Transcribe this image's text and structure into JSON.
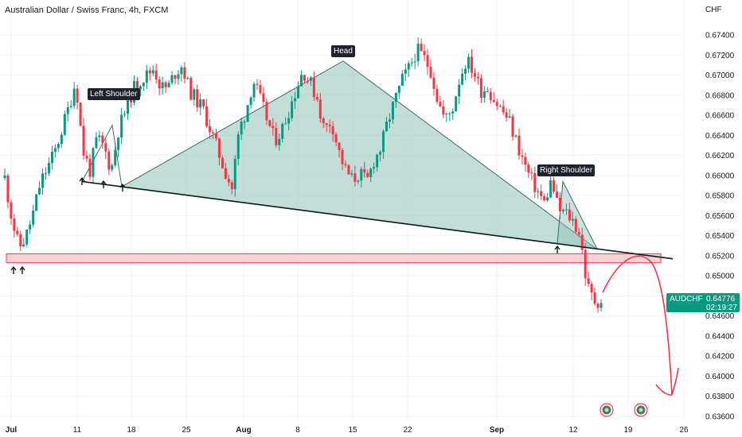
{
  "header": {
    "title": "Australian Dollar / Swiss Franc, 4h, FXCM",
    "currency": "CHF"
  },
  "price_tag": {
    "symbol": "AUDCHF",
    "price": "0.64776",
    "countdown": "02:19:27"
  },
  "annotations": {
    "left_shoulder": "Left Shoulder",
    "head": "Head",
    "right_shoulder": "Right Shoulder"
  },
  "colors": {
    "up": "#089981",
    "down": "#f23645",
    "triangle_fill": "#8fc2b4",
    "zone_fill": "#f6c1c6",
    "zone_border": "#f23645",
    "neckline": "#131722",
    "projection": "#f23645"
  },
  "chart_data": {
    "type": "candlestick",
    "symbol": "AUDCHF",
    "interval": "4h",
    "ylim": [
      0.6358,
      0.6756
    ],
    "y_ticks": [
      "0.67400",
      "0.67200",
      "0.67000",
      "0.66800",
      "0.66600",
      "0.66400",
      "0.66200",
      "0.66000",
      "0.65800",
      "0.65600",
      "0.65400",
      "0.65200",
      "0.65000",
      "0.64800",
      "0.64600",
      "0.64400",
      "0.64200",
      "0.64000",
      "0.63800",
      "0.63600"
    ],
    "x_ticks": [
      {
        "label": "Jul",
        "bold": true
      },
      {
        "label": "11",
        "bold": false
      },
      {
        "label": "18",
        "bold": false
      },
      {
        "label": "25",
        "bold": false
      },
      {
        "label": "Aug",
        "bold": true
      },
      {
        "label": "8",
        "bold": false
      },
      {
        "label": "15",
        "bold": false
      },
      {
        "label": "22",
        "bold": false
      },
      {
        "label": "Sep",
        "bold": true
      },
      {
        "label": "12",
        "bold": false
      },
      {
        "label": "19",
        "bold": false
      },
      {
        "label": "26",
        "bold": false
      }
    ],
    "price_path": [
      [
        0.6595,
        0.66
      ],
      [
        0.6555,
        0.656
      ],
      [
        0.6525,
        0.653
      ],
      [
        0.6538,
        0.654
      ],
      [
        0.656,
        0.6565
      ],
      [
        0.659,
        0.6595
      ],
      [
        0.6605,
        0.661
      ],
      [
        0.662,
        0.6625
      ],
      [
        0.664,
        0.665
      ],
      [
        0.6665,
        0.667
      ],
      [
        0.669,
        0.67
      ],
      [
        0.662,
        0.663
      ],
      [
        0.66,
        0.661
      ],
      [
        0.6635,
        0.664
      ],
      [
        0.6625,
        0.663
      ],
      [
        0.66,
        0.661
      ],
      [
        0.664,
        0.665
      ],
      [
        0.666,
        0.667
      ],
      [
        0.668,
        0.669
      ],
      [
        0.669,
        0.67
      ],
      [
        0.6695,
        0.6705
      ],
      [
        0.6705,
        0.671
      ],
      [
        0.6685,
        0.669
      ],
      [
        0.6685,
        0.669
      ],
      [
        0.67,
        0.6705
      ],
      [
        0.6705,
        0.6715
      ],
      [
        0.668,
        0.669
      ],
      [
        0.667,
        0.668
      ],
      [
        0.666,
        0.667
      ],
      [
        0.664,
        0.665
      ],
      [
        0.662,
        0.663
      ],
      [
        0.66,
        0.661
      ],
      [
        0.6585,
        0.659
      ],
      [
        0.664,
        0.665
      ],
      [
        0.666,
        0.667
      ],
      [
        0.669,
        0.67
      ],
      [
        0.667,
        0.668
      ],
      [
        0.665,
        0.666
      ],
      [
        0.663,
        0.664
      ],
      [
        0.664,
        0.665
      ],
      [
        0.666,
        0.667
      ],
      [
        0.668,
        0.669
      ],
      [
        0.67,
        0.671
      ],
      [
        0.669,
        0.6695
      ],
      [
        0.6675,
        0.668
      ],
      [
        0.664,
        0.665
      ],
      [
        0.665,
        0.666
      ],
      [
        0.662,
        0.663
      ],
      [
        0.66,
        0.661
      ],
      [
        0.659,
        0.66
      ],
      [
        0.66,
        0.6605
      ],
      [
        0.659,
        0.6595
      ],
      [
        0.661,
        0.662
      ],
      [
        0.6625,
        0.663
      ],
      [
        0.665,
        0.666
      ],
      [
        0.667,
        0.668
      ],
      [
        0.669,
        0.67
      ],
      [
        0.6705,
        0.671
      ],
      [
        0.672,
        0.673
      ],
      [
        0.6715,
        0.672
      ],
      [
        0.67,
        0.671
      ],
      [
        0.667,
        0.668
      ],
      [
        0.665,
        0.666
      ],
      [
        0.666,
        0.667
      ],
      [
        0.669,
        0.67
      ],
      [
        0.671,
        0.672
      ],
      [
        0.67,
        0.671
      ],
      [
        0.668,
        0.669
      ],
      [
        0.6685,
        0.669
      ],
      [
        0.667,
        0.668
      ],
      [
        0.666,
        0.667
      ],
      [
        0.665,
        0.666
      ],
      [
        0.663,
        0.664
      ],
      [
        0.661,
        0.662
      ],
      [
        0.6595,
        0.66
      ],
      [
        0.658,
        0.659
      ],
      [
        0.657,
        0.6575
      ],
      [
        0.659,
        0.66
      ],
      [
        0.656,
        0.657
      ],
      [
        0.656,
        0.6565
      ],
      [
        0.655,
        0.656
      ],
      [
        0.654,
        0.6545
      ],
      [
        0.648,
        0.65
      ],
      [
        0.647,
        0.648
      ],
      [
        0.6472,
        0.6478
      ]
    ],
    "last_price": 0.64776,
    "patterns": {
      "left_shoulder_label": "Left Shoulder",
      "head_label": "Head",
      "right_shoulder_label": "Right Shoulder",
      "neckline": [
        0.6594,
        0.6517
      ],
      "head_price": 0.6714,
      "support_zone": [
        0.6513,
        0.6522
      ],
      "projection_target": 0.6383
    }
  }
}
